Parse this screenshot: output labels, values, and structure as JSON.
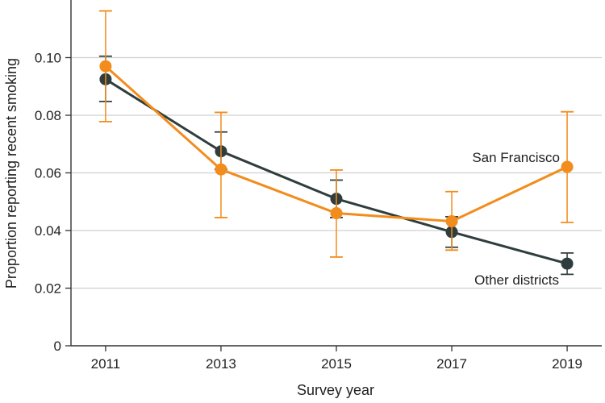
{
  "chart_data": {
    "type": "line",
    "xlabel": "Survey year",
    "ylabel": "Proportion reporting recent smoking",
    "x": [
      2011,
      2013,
      2015,
      2017,
      2019
    ],
    "x_tick_labels": [
      "2011",
      "2013",
      "2015",
      "2017",
      "2019"
    ],
    "xlim": [
      2010.4,
      2019.6
    ],
    "ylim": [
      0,
      0.12
    ],
    "y_ticks": [
      0,
      0.02,
      0.04,
      0.06,
      0.08,
      0.1
    ],
    "y_tick_labels": [
      "0",
      "0.02",
      "0.04",
      "0.06",
      "0.08",
      "0.10"
    ],
    "grid": "horizontal",
    "series": [
      {
        "name": "Other districts",
        "color": "#2f3e3d",
        "values": [
          0.0925,
          0.0675,
          0.051,
          0.0395,
          0.0285
        ],
        "error_low": [
          0.0848,
          0.0612,
          0.0445,
          0.0342,
          0.0248
        ],
        "error_high": [
          0.1005,
          0.0742,
          0.0575,
          0.0448,
          0.0322
        ]
      },
      {
        "name": "San Francisco",
        "color": "#f28c1c",
        "values": [
          0.097,
          0.0612,
          0.046,
          0.0432,
          0.0621
        ],
        "error_low": [
          0.0778,
          0.0445,
          0.0308,
          0.0332,
          0.0428
        ],
        "error_high": [
          0.1162,
          0.081,
          0.061,
          0.0535,
          0.0812
        ]
      }
    ]
  }
}
